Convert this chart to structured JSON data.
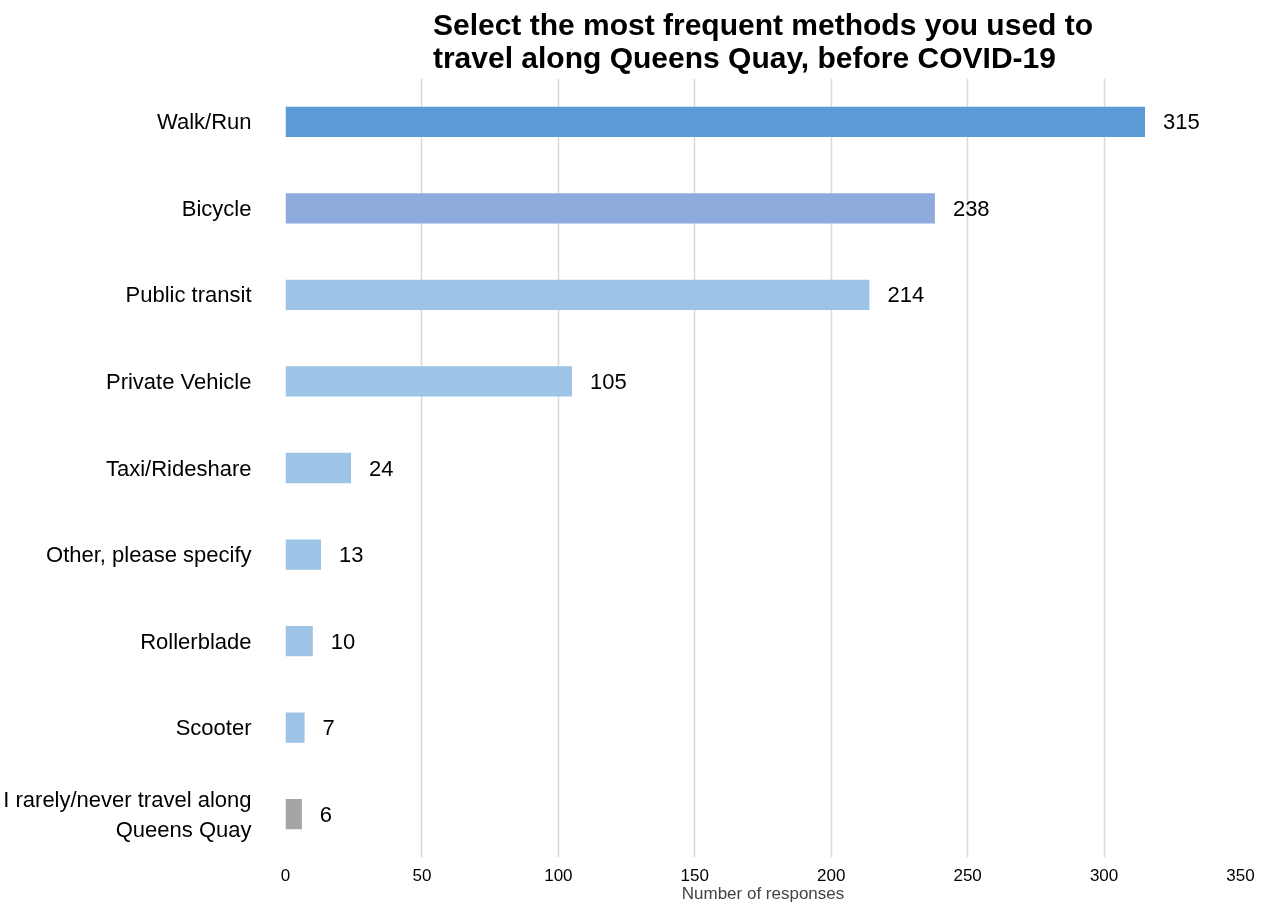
{
  "chart_data": {
    "type": "bar",
    "orientation": "horizontal",
    "title": "Select the most frequent methods you used to\ntravel along Queens Quay, before COVID-19",
    "xlabel": "Number of responses",
    "categories": [
      "Walk/Run",
      "Bicycle",
      "Public transit",
      "Private Vehicle",
      "Taxi/Rideshare",
      "Other, please specify",
      "Rollerblade",
      "Scooter",
      "I rarely/never travel along\nQueens Quay"
    ],
    "values": [
      315,
      238,
      214,
      105,
      24,
      13,
      10,
      7,
      6
    ],
    "colors": [
      "#5b9bd5",
      "#8faadc",
      "#9dc3e6",
      "#9dc3e6",
      "#9dc3e6",
      "#9dc3e6",
      "#9dc3e6",
      "#9dc3e6",
      "#a5a5a5"
    ],
    "xlim": [
      0,
      350
    ],
    "xticks": [
      0,
      50,
      100,
      150,
      200,
      250,
      300,
      350
    ],
    "grid": "x",
    "data_labels": true,
    "legend": false
  }
}
